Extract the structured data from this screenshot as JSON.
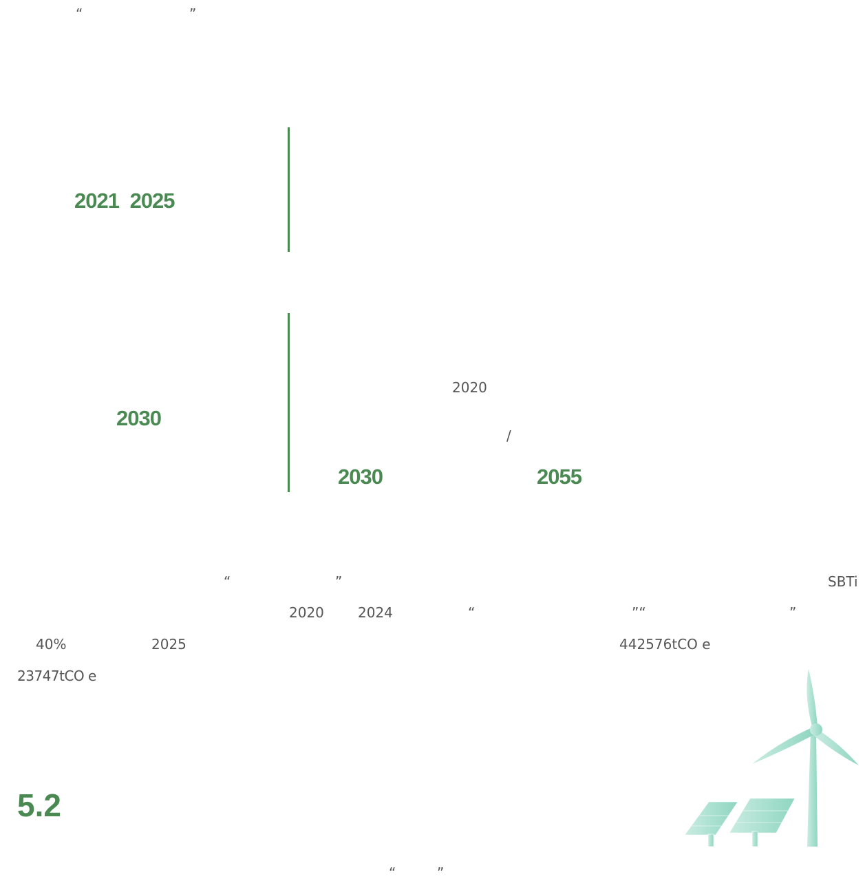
{
  "header": {
    "quotes": [
      "“",
      "”"
    ]
  },
  "goals": [
    {
      "period": "2021 2025"
    },
    {
      "period": "2030",
      "base_year": "2020",
      "separator": "/",
      "targets": [
        "2030",
        "2055"
      ]
    }
  ],
  "body": {
    "line1": [
      "“",
      "”",
      "SBTi"
    ],
    "line2": [
      "2020",
      "2024",
      "“",
      "”“",
      "”"
    ],
    "line3": [
      "40%",
      "2025",
      "442576tCO e"
    ],
    "line4": [
      "23747tCO e"
    ]
  },
  "section": {
    "heading": "5.2",
    "quotes": [
      "“",
      "”"
    ]
  }
}
